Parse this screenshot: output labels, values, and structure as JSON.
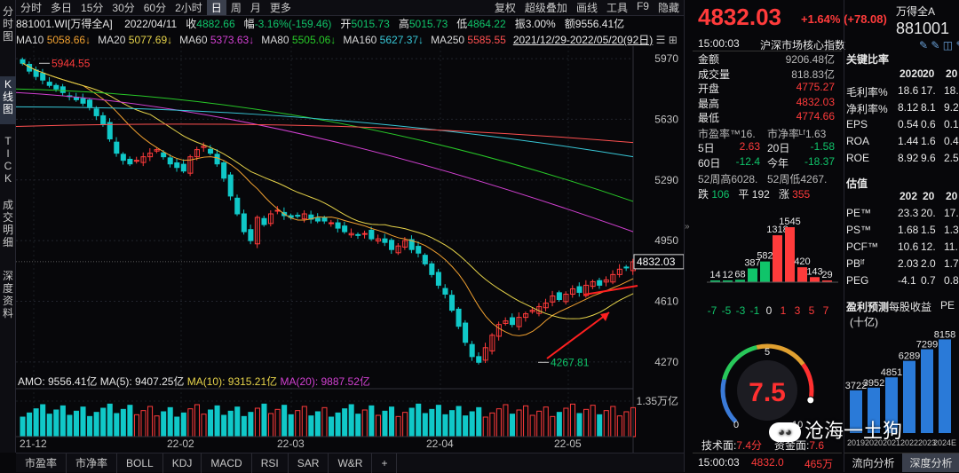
{
  "leftnav": [
    "分时图",
    "K线图",
    "TICK",
    "成交明细",
    "深度资料"
  ],
  "topbar": {
    "tabs": [
      "分时",
      "多日",
      "15分",
      "30分",
      "60分",
      "2小时",
      "日",
      "周",
      "月",
      "更多"
    ],
    "active": "日",
    "right": [
      "复权",
      "超级叠加",
      "画线",
      "工具",
      "F9",
      "隐藏"
    ]
  },
  "quote": {
    "code_name": "881001.WI[万得全A]",
    "date": "2022/04/11",
    "close_label": "收",
    "close": "4882.66",
    "chg_label": "幅",
    "chg": "-3.16%(-159.46)",
    "open_label": "开",
    "open": "5015.73",
    "high_label": "高",
    "high": "5015.73",
    "low_label": "低",
    "low": "4864.22",
    "amp_label": "振",
    "amp": "3.00%",
    "amt_label": "额",
    "amt": "9556.41亿"
  },
  "ma": [
    {
      "label": "MA10",
      "value": "5058.66↓",
      "color": "#f0a030"
    },
    {
      "label": "MA20",
      "value": "5077.69↓",
      "color": "#e6d34a"
    },
    {
      "label": "MA60",
      "value": "5373.63↓",
      "color": "#d040d0"
    },
    {
      "label": "MA80",
      "value": "5505.06↓",
      "color": "#28c828"
    },
    {
      "label": "MA160",
      "value": "5627.37↓",
      "color": "#38c8d8"
    },
    {
      "label": "MA250",
      "value": "5585.55",
      "color": "#ff5050"
    }
  ],
  "range_text": "2021/12/29-2022/05/20(92日)",
  "chart": {
    "yticks": [
      "5970",
      "5630",
      "5290",
      "4950",
      "4610",
      "4270"
    ],
    "price_tag": "4832.03",
    "high_mark": "5944.55",
    "low_mark": "4267.81",
    "xticks": [
      "21-12",
      "22-02",
      "22-03",
      "22-04",
      "22-05"
    ],
    "volume_label": "AMO: 9556.41亿",
    "vol_ma5": "MA(5): 9407.25亿",
    "vol_ma10": "MA(10): 9315.21亿",
    "vol_ma20": "MA(20): 9887.52亿",
    "vol_tick": "1.35万亿"
  },
  "bottombar": [
    "市盈率",
    "市净率",
    "BOLL",
    "KDJ",
    "MACD",
    "RSI",
    "SAR",
    "W&R",
    "+"
  ],
  "right": {
    "price": "4832.03",
    "change": "+1.64% (+78.08)",
    "name": "万得全A",
    "code": "881001",
    "time": "15:00:03",
    "index_name": "沪深市场核心指数",
    "stats": [
      {
        "k": "金额",
        "v": "9206.48亿",
        "c": "grey"
      },
      {
        "k": "成交量",
        "v": "818.83亿",
        "c": "grey"
      },
      {
        "k": "开盘",
        "v": "4775.27",
        "c": "red"
      },
      {
        "k": "最高",
        "v": "4832.03",
        "c": "red"
      },
      {
        "k": "最低",
        "v": "4774.66",
        "c": "red"
      }
    ],
    "pe": "市盈率™16.",
    "pb": "市净率ᴸᶠ1.63",
    "perf": [
      {
        "k1": "5日",
        "v1": "2.63",
        "c1": "red",
        "k2": "20日",
        "v2": "-1.58",
        "c2": "green"
      },
      {
        "k1": "60日",
        "v1": "-12.4",
        "c1": "green",
        "k2": "今年",
        "v2": "-18.37",
        "c2": "green"
      }
    ],
    "wk52": "52周高6028.",
    "wk52l": "52周低4267.",
    "updown": {
      "down_label": "跌",
      "down": "106",
      "flat_label": "平",
      "flat": "192",
      "up_label": "涨",
      "up": "355"
    },
    "dist_values": [
      "14",
      "12",
      "68",
      "387",
      "582",
      "1318",
      "1545",
      "420",
      "143",
      "29"
    ],
    "dist_xlabels": [
      "-7",
      "-5",
      "-3",
      "-1",
      "0",
      "1",
      "3",
      "5",
      "7"
    ],
    "gauge": {
      "value": "7.5",
      "min": "0",
      "mid": "5",
      "max": "10"
    },
    "tech_label": "技术面:",
    "tech": "7.4分",
    "fund_label": "资金面:",
    "fund": "7.6",
    "footer_time": "15:00:03",
    "footer_price": "4832.0",
    "footer_vol": "465万",
    "watermark": "沧海一土狗",
    "tabs": [
      "流向分析",
      "深度分析"
    ]
  },
  "ratio": {
    "title": "关键比率",
    "years": [
      "2020",
      "20",
      "20"
    ],
    "rows": [
      {
        "k": "毛利率%",
        "v": [
          "18.6",
          "17.",
          "18."
        ]
      },
      {
        "k": "净利率%",
        "v": [
          "8.12",
          "8.1",
          "9.2"
        ]
      },
      {
        "k": "EPS",
        "v": [
          "0.54",
          "0.6",
          "0.1"
        ]
      },
      {
        "k": "ROA",
        "v": [
          "1.44",
          "1.6",
          "0.4"
        ]
      },
      {
        "k": "ROE",
        "v": [
          "8.92",
          "9.6",
          "2.5"
        ]
      }
    ],
    "val_title": "估值",
    "val_years": [
      "202",
      "20",
      "20"
    ],
    "val_rows": [
      {
        "k": "PE™",
        "v": [
          "23.3",
          "20.",
          "17."
        ]
      },
      {
        "k": "PS™",
        "v": [
          "1.68",
          "1.5",
          "1.3"
        ]
      },
      {
        "k": "PCF™",
        "v": [
          "10.6",
          "12.",
          "11."
        ]
      },
      {
        "k": "PBˡᶠ",
        "v": [
          "2.03",
          "2.0",
          "1.7"
        ]
      },
      {
        "k": "PEG",
        "v": [
          "-4.1",
          "0.7",
          "0.8"
        ]
      }
    ],
    "eps_title": "盈利预测",
    "eps_sub": "每股收益",
    "eps_unit": "(十亿)",
    "eps_right": "PE",
    "eps_values": [
      "3722",
      "3952",
      "4851",
      "6289",
      "7299",
      "8158"
    ],
    "eps_years": [
      "2019",
      "2020",
      "2021",
      "2022",
      "2023",
      "2024E"
    ]
  }
}
